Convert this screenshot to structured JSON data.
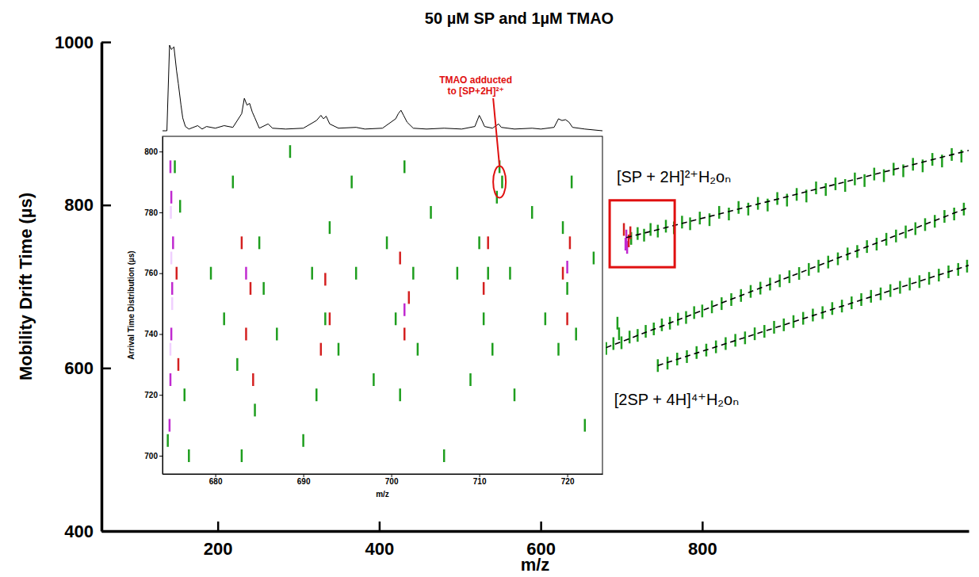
{
  "chart_data": [
    {
      "type": "scatter",
      "title": "50 µM SP and 1µM TMAO",
      "x_label": "m/z",
      "y_label": "Mobility Drift Time (µs)",
      "xlim": [
        56,
        1130
      ],
      "ylim": [
        400,
        1000
      ],
      "xticks": [
        200,
        400,
        600,
        800
      ],
      "yticks": [
        400,
        600,
        800,
        1000
      ],
      "series": [
        {
          "type": "scatter",
          "color": "#1e9e1e",
          "marker": "vline",
          "x": [
            712,
            720,
            728,
            736,
            745,
            755,
            765,
            775,
            785,
            797,
            809,
            821,
            833,
            845,
            857,
            869,
            881,
            893,
            905,
            917,
            929,
            941,
            953,
            965,
            977,
            989,
            1001,
            1013,
            1025,
            1037,
            1049,
            1061,
            1073,
            1085,
            1097,
            1109,
            1121
          ],
          "values": [
            759,
            765,
            763,
            770,
            768,
            774,
            772,
            779,
            777,
            784,
            782,
            791,
            789,
            797,
            795,
            802,
            800,
            808,
            806,
            813,
            811,
            821,
            819,
            826,
            824,
            832,
            830,
            838,
            836,
            844,
            842,
            850,
            848,
            856,
            854,
            862,
            860
          ]
        },
        {
          "type": "scatter",
          "color": "#1e9e1e",
          "marker": "vline",
          "x": [
            681,
            690,
            695,
            697,
            700,
            710,
            720,
            730,
            740,
            750,
            760,
            770,
            780,
            790,
            800,
            812,
            824,
            836,
            848,
            860,
            872,
            884,
            896,
            908,
            920,
            932,
            944,
            956,
            968,
            980,
            992,
            1004,
            1016,
            1028,
            1040,
            1052,
            1064,
            1076,
            1088,
            1100,
            1112,
            1124
          ],
          "values": [
            624,
            630,
            655,
            642,
            631,
            638,
            640,
            645,
            648,
            653,
            655,
            660,
            662,
            668,
            670,
            675,
            679,
            684,
            689,
            694,
            698,
            703,
            707,
            712,
            716,
            721,
            725,
            730,
            734,
            740,
            743,
            749,
            752,
            758,
            762,
            767,
            771,
            776,
            780,
            786,
            789,
            795
          ]
        },
        {
          "type": "scatter",
          "color": "#1e9e1e",
          "marker": "vline",
          "x": [
            745,
            757,
            769,
            781,
            793,
            805,
            817,
            829,
            841,
            853,
            865,
            877,
            889,
            901,
            913,
            925,
            937,
            949,
            961,
            973,
            985,
            997,
            1009,
            1021,
            1033,
            1045,
            1057,
            1069,
            1081,
            1093,
            1105,
            1117,
            1128
          ],
          "values": [
            603,
            606,
            611,
            614,
            619,
            622,
            626,
            630,
            634,
            637,
            642,
            645,
            650,
            653,
            657,
            661,
            665,
            668,
            673,
            676,
            680,
            684,
            688,
            691,
            695,
            699,
            703,
            706,
            710,
            714,
            718,
            721,
            725
          ]
        },
        {
          "type": "scatter",
          "color": "#c02ad0",
          "marker": "vline",
          "x": [
            705,
            706,
            707
          ],
          "values": [
            752,
            762,
            748
          ]
        },
        {
          "type": "scatter",
          "color": "#d42020",
          "marker": "vline",
          "x": [
            703,
            709,
            711
          ],
          "values": [
            770,
            756,
            766
          ]
        },
        {
          "type": "line",
          "color": "#000000",
          "line_style": "dashed",
          "x": [
            706,
            1130
          ],
          "values": [
            760,
            867
          ]
        },
        {
          "type": "line",
          "color": "#000000",
          "line_style": "dashed",
          "x": [
            681,
            1130
          ],
          "values": [
            625,
            797
          ]
        },
        {
          "type": "line",
          "color": "#000000",
          "line_style": "dashed",
          "x": [
            745,
            1130
          ],
          "values": [
            603,
            726
          ]
        }
      ],
      "annotations": [
        {
          "text": "[SP + 2H]²⁺H₂oₙ",
          "x": 694,
          "y": 828
        },
        {
          "text": "[2SP + 4H]⁴⁺H₂oₙ",
          "x": 691,
          "y": 555
        }
      ]
    },
    {
      "type": "scatter",
      "x_label": "m/z",
      "y_label": "Arrival Time Distribution (µs)",
      "xlim": [
        674,
        724
      ],
      "ylim": [
        694,
        805
      ],
      "xticks": [
        680,
        690,
        700,
        710,
        720
      ],
      "yticks": [
        700,
        720,
        740,
        760,
        780,
        800
      ],
      "series": [
        {
          "type": "scatter",
          "color": "#1e9e1e",
          "marker": "vline",
          "x": [
            674.6,
            675.4,
            676,
            676.5,
            677,
            679.5,
            681,
            682,
            682.5,
            683,
            684.5,
            685,
            685.5,
            687,
            688.5,
            690,
            691,
            691.5,
            692.5,
            693,
            694,
            695.5,
            696,
            698,
            699.5,
            700.5,
            701,
            701.5,
            702.5,
            703,
            704.5,
            706,
            707.5,
            709,
            710,
            710.5,
            711,
            711.5,
            712,
            712.3,
            712.6,
            713.5,
            714,
            716,
            717.5,
            719,
            719.5,
            720,
            720.5,
            721,
            722,
            723
          ],
          "values": [
            705,
            795,
            782,
            720,
            700,
            760,
            745,
            790,
            730,
            700,
            715,
            770,
            755,
            740,
            800,
            705,
            760,
            720,
            745,
            775,
            735,
            790,
            760,
            725,
            770,
            745,
            720,
            795,
            760,
            735,
            780,
            700,
            760,
            725,
            770,
            745,
            760,
            735,
            785,
            795,
            790,
            760,
            720,
            780,
            745,
            735,
            775,
            755,
            790,
            740,
            710,
            765
          ]
        },
        {
          "type": "scatter",
          "color": "#d42020",
          "marker": "vline",
          "x": [
            675.6,
            675.8,
            683,
            683.5,
            684,
            684.3,
            692,
            692.5,
            693,
            701,
            701.5,
            702,
            710.5,
            711,
            719.5,
            720,
            720.3
          ],
          "values": [
            760,
            730,
            770,
            740,
            755,
            725,
            735,
            758,
            745,
            765,
            740,
            752,
            755,
            770,
            760,
            745,
            770
          ]
        },
        {
          "type": "scatter",
          "color": "#c02ad0",
          "marker": "vline",
          "x": [
            674.8,
            674.9,
            675,
            675.1,
            675.2,
            675,
            674.9,
            683.5,
            701.5,
            720
          ],
          "values": [
            710,
            725,
            740,
            755,
            770,
            785,
            795,
            760,
            748,
            762
          ]
        },
        {
          "type": "scatter",
          "color": "#f0d0ff",
          "marker": "vline",
          "x": [
            674.9,
            675.1,
            675,
            674.95
          ],
          "values": [
            735,
            750,
            765,
            780
          ]
        }
      ],
      "annotations": [
        {
          "text": [
            "TMAO adducted",
            "to [SP+2H]²⁺"
          ],
          "x": 712.3,
          "y": 790
        }
      ]
    },
    {
      "type": "line",
      "xlim": [
        674,
        724
      ],
      "ylim": [
        0,
        100
      ],
      "tick_labels": false,
      "series": [
        {
          "type": "line",
          "color": "#000000",
          "x": [
            674,
            674.5,
            674.8,
            675,
            675.3,
            675.6,
            675.8,
            676.1,
            676.3,
            676.6,
            677,
            678,
            678.5,
            679,
            680,
            681,
            682,
            683,
            683.3,
            683.6,
            683.9,
            684.2,
            684.5,
            685,
            686,
            686.5,
            688,
            690,
            691.5,
            692,
            692.3,
            692.6,
            693,
            694,
            696,
            697,
            699,
            700.5,
            700.8,
            701.1,
            701.4,
            701.8,
            702.5,
            704,
            706,
            708,
            709.5,
            710,
            710.3,
            710.6,
            711.5,
            712.2,
            712.5,
            714,
            716,
            717,
            718.5,
            719,
            719.4,
            719.8,
            720.2,
            720.6,
            722,
            724
          ],
          "values": [
            0,
            0,
            100,
            95,
            98,
            70,
            55,
            30,
            15,
            5,
            2,
            6,
            2,
            5,
            3,
            6,
            4,
            20,
            38,
            30,
            32,
            22,
            15,
            3,
            8,
            3,
            2,
            3,
            12,
            18,
            14,
            17,
            8,
            3,
            4,
            2,
            3,
            14,
            20,
            24,
            18,
            10,
            3,
            2,
            3,
            2,
            5,
            18,
            12,
            5,
            3,
            8,
            4,
            2,
            3,
            2,
            4,
            14,
            12,
            13,
            10,
            4,
            2,
            0
          ]
        }
      ]
    }
  ]
}
